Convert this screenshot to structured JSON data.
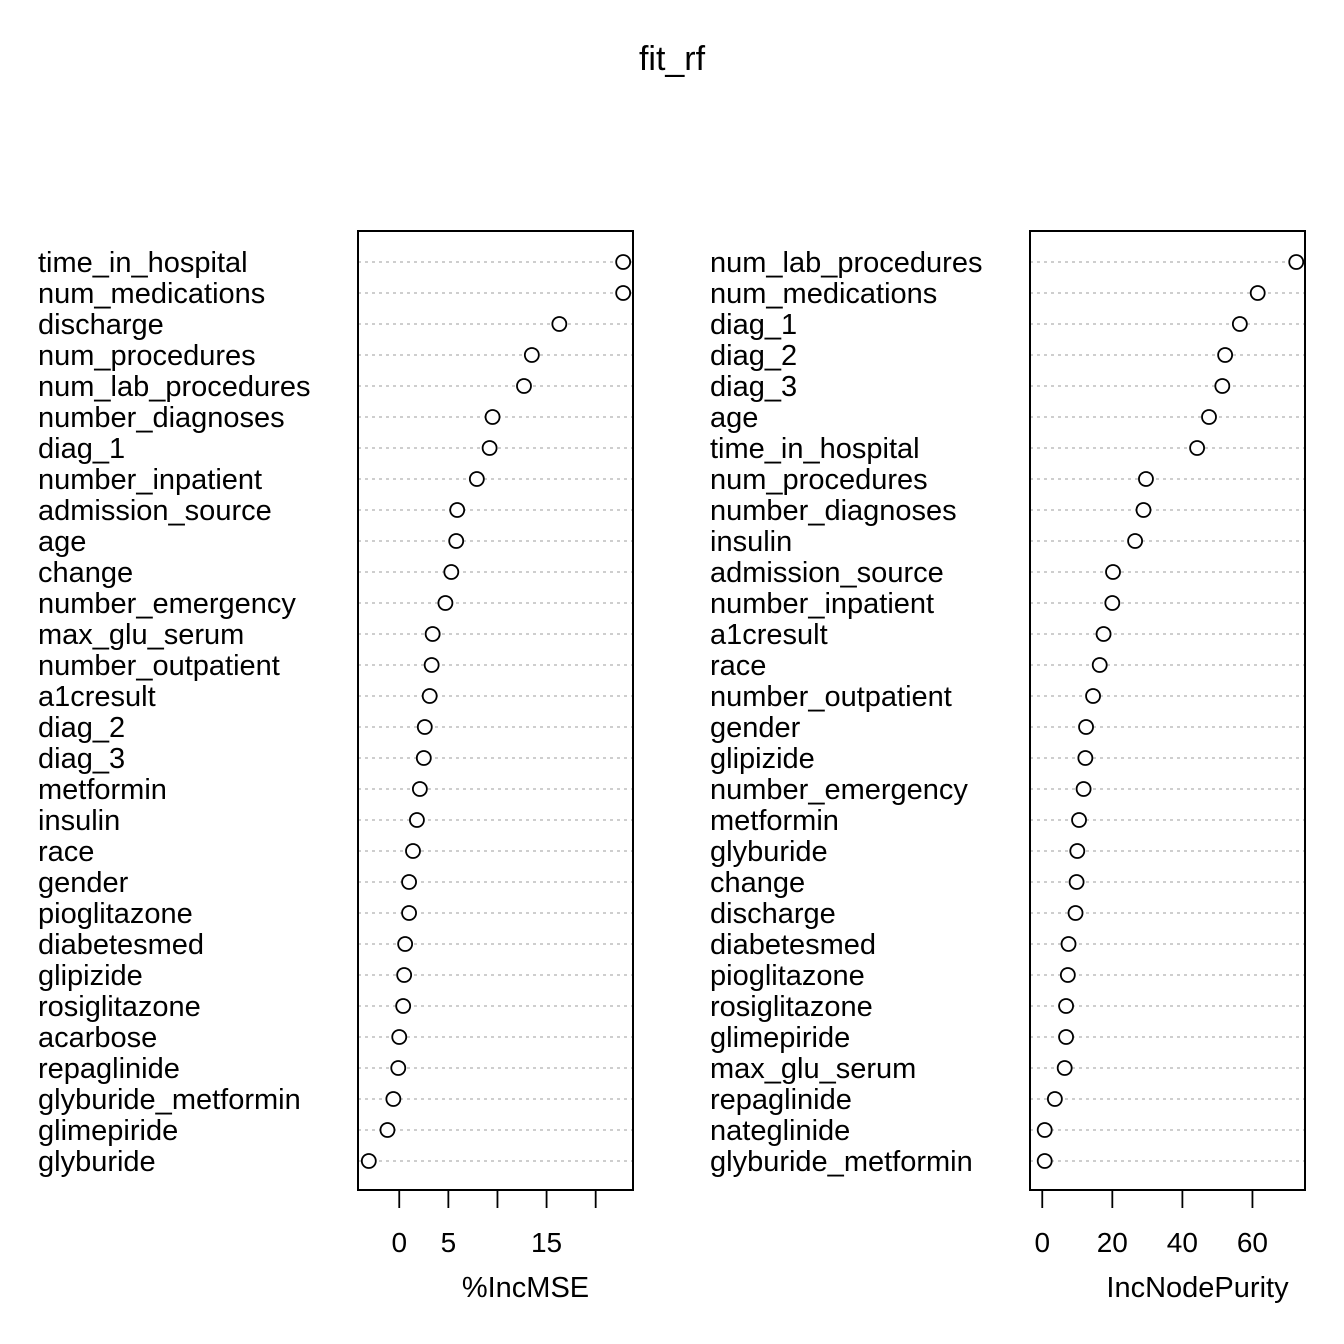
{
  "title": "fit_rf",
  "chart_data": [
    {
      "type": "scatter",
      "style": "dotchart",
      "xlabel": "%IncMSE",
      "xticks": [
        0,
        5,
        15
      ],
      "xlim": [
        -4.2,
        23.8
      ],
      "grid": "dotted horizontal lines",
      "categories": [
        "time_in_hospital",
        "num_medications",
        "discharge",
        "num_procedures",
        "num_lab_procedures",
        "number_diagnoses",
        "diag_1",
        "number_inpatient",
        "admission_source",
        "age",
        "change",
        "number_emergency",
        "max_glu_serum",
        "number_outpatient",
        "a1cresult",
        "diag_2",
        "diag_3",
        "metformin",
        "insulin",
        "race",
        "gender",
        "pioglitazone",
        "diabetesmed",
        "glipizide",
        "rosiglitazone",
        "acarbose",
        "repaglinide",
        "glyburide_metformin",
        "glimepiride",
        "glyburide"
      ],
      "values": [
        22.8,
        22.8,
        16.3,
        13.5,
        12.7,
        9.5,
        9.2,
        7.9,
        5.9,
        5.8,
        5.3,
        4.7,
        3.4,
        3.3,
        3.1,
        2.6,
        2.5,
        2.1,
        1.8,
        1.4,
        1.0,
        1.0,
        0.6,
        0.5,
        0.4,
        0.0,
        -0.1,
        -0.6,
        -1.2,
        -3.1
      ]
    },
    {
      "type": "scatter",
      "style": "dotchart",
      "xlabel": "IncNodePurity",
      "xticks": [
        0,
        20,
        40,
        60
      ],
      "xlim": [
        -3.5,
        75.0
      ],
      "grid": "dotted horizontal lines",
      "categories": [
        "num_lab_procedures",
        "num_medications",
        "diag_1",
        "diag_2",
        "diag_3",
        "age",
        "time_in_hospital",
        "num_procedures",
        "number_diagnoses",
        "insulin",
        "admission_source",
        "number_inpatient",
        "a1cresult",
        "race",
        "number_outpatient",
        "gender",
        "glipizide",
        "number_emergency",
        "metformin",
        "glyburide",
        "change",
        "discharge",
        "diabetesmed",
        "pioglitazone",
        "rosiglitazone",
        "glimepiride",
        "max_glu_serum",
        "repaglinide",
        "nateglinide",
        "glyburide_metformin"
      ],
      "values": [
        72.5,
        61.5,
        56.4,
        52.2,
        51.4,
        47.6,
        44.2,
        29.6,
        28.9,
        26.5,
        20.2,
        20.0,
        17.5,
        16.4,
        14.5,
        12.5,
        12.3,
        11.8,
        10.5,
        10.0,
        9.8,
        9.5,
        7.5,
        7.3,
        6.8,
        6.8,
        6.4,
        3.6,
        0.7,
        0.7
      ]
    }
  ]
}
